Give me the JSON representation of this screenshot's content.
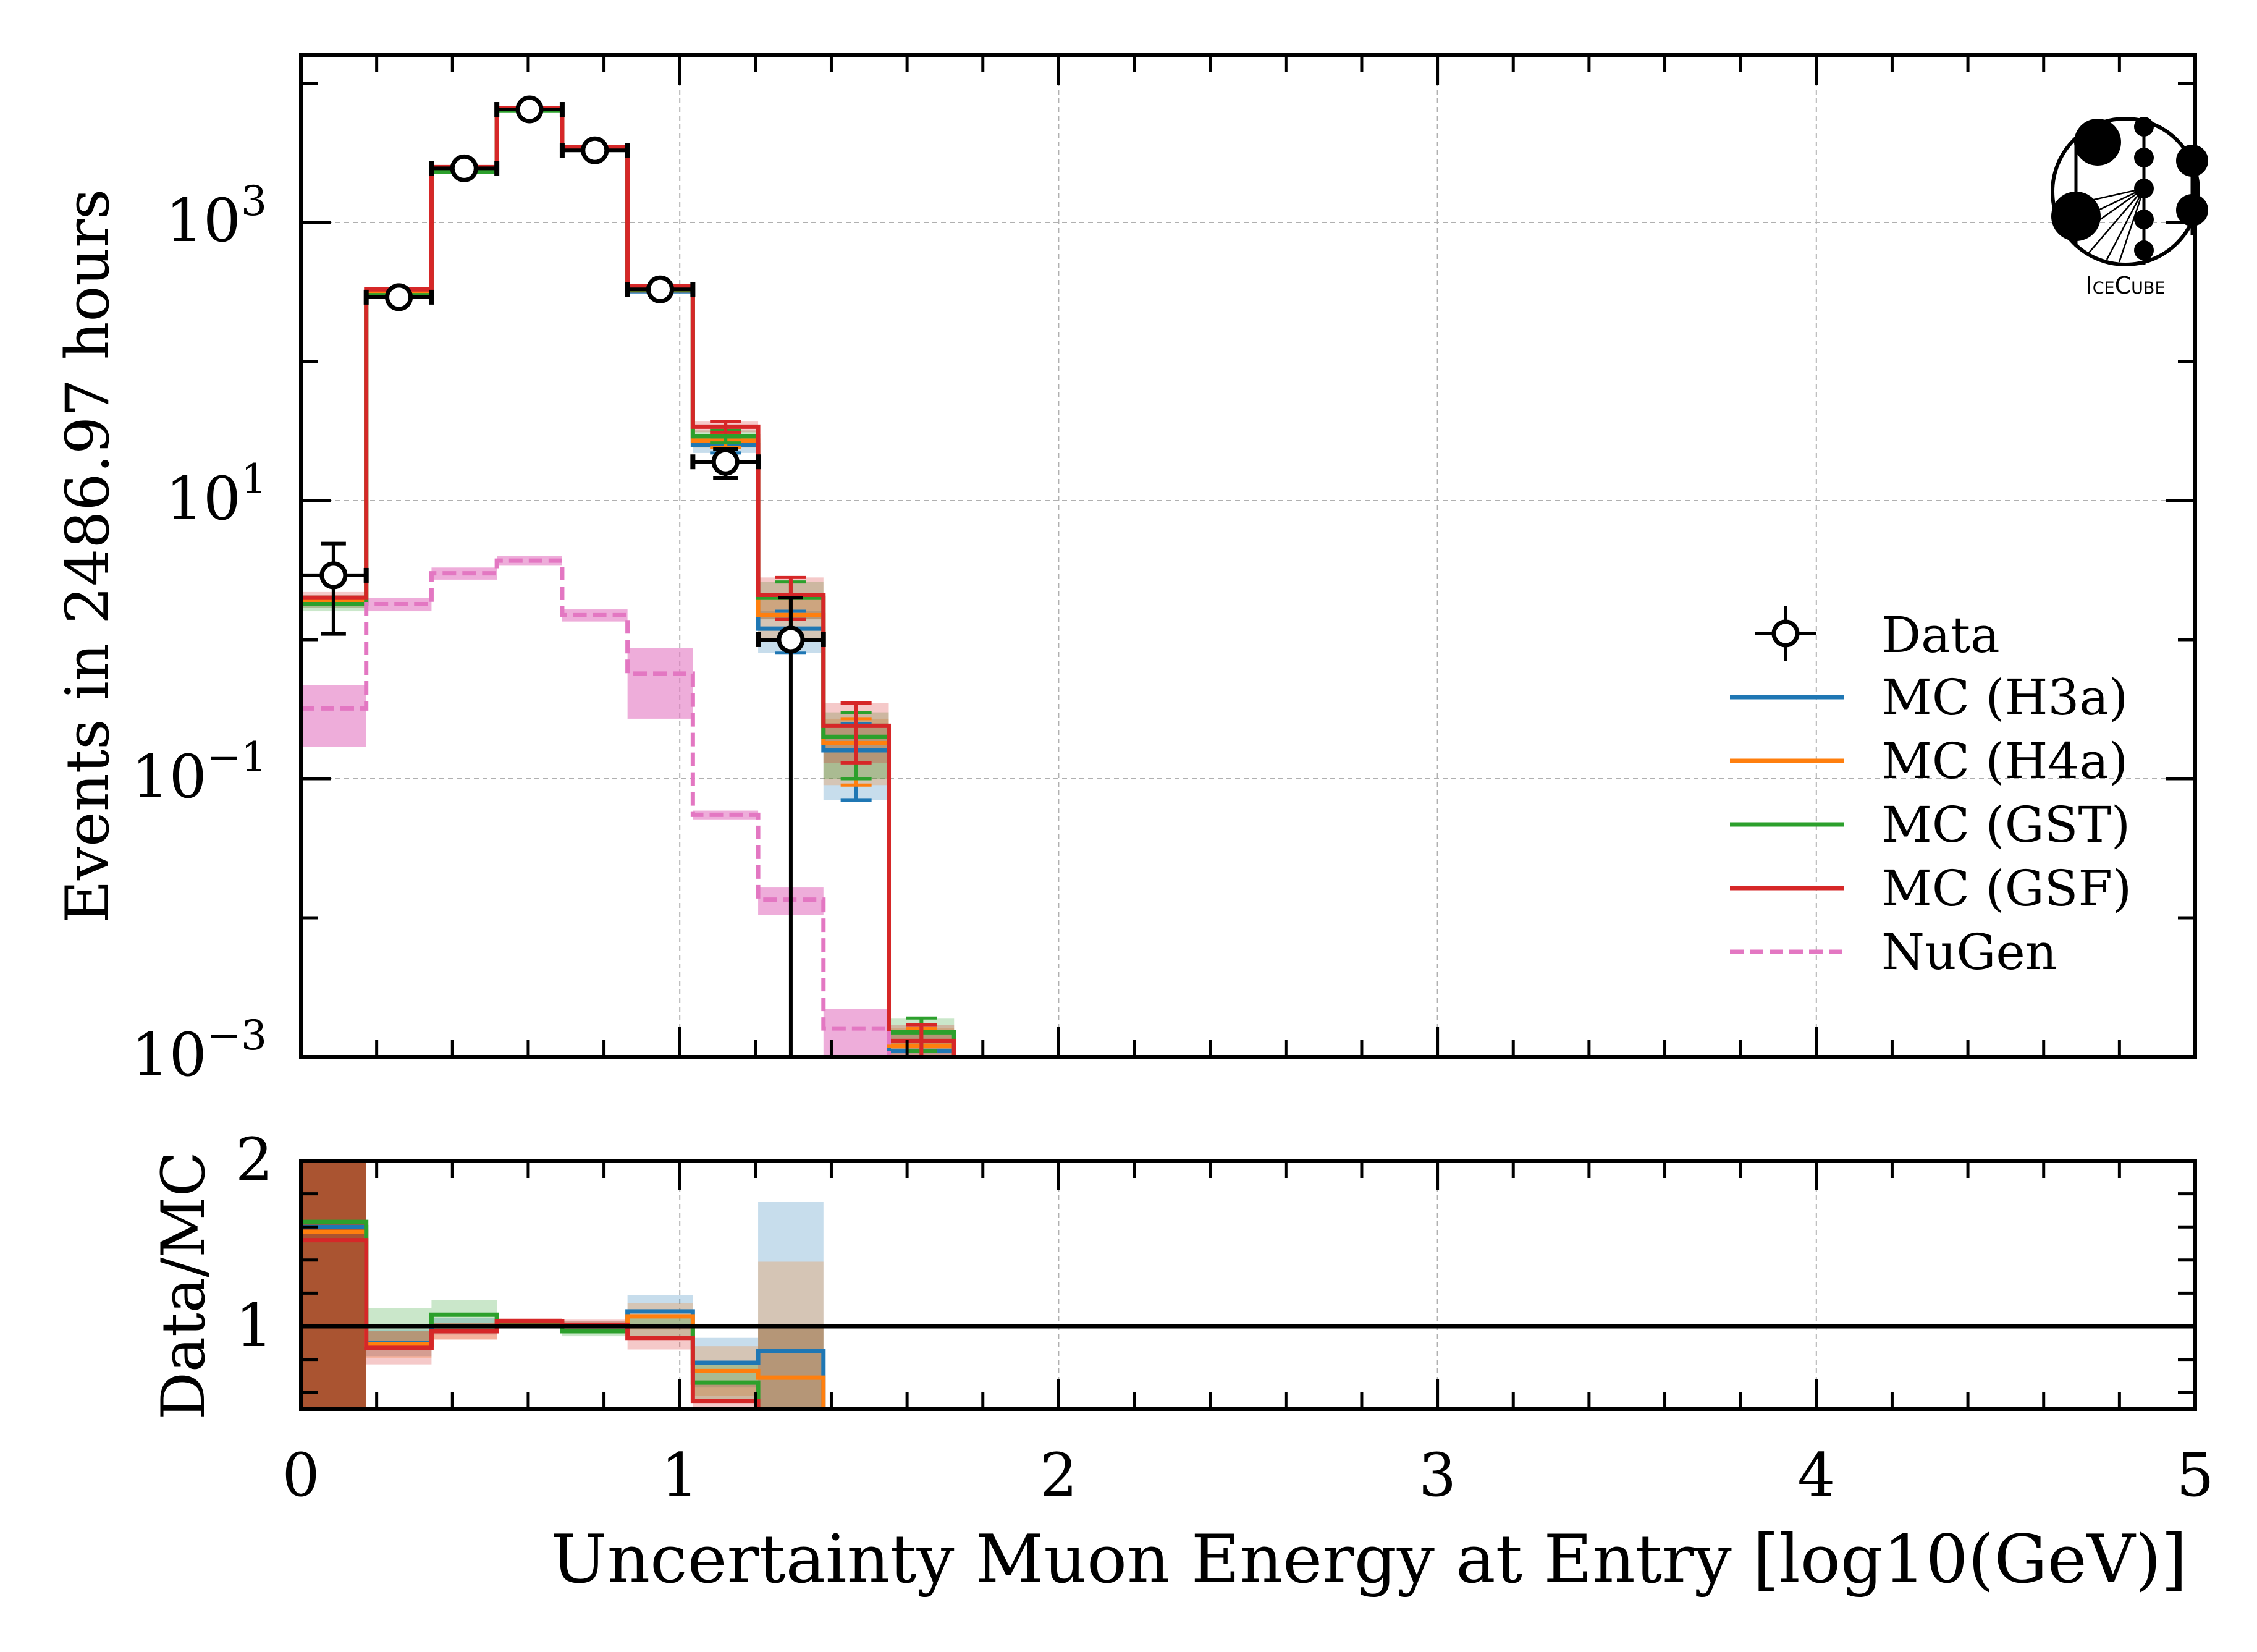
{
  "chart_data": [
    {
      "type": "step",
      "panel": "main",
      "ylabel": "Events in 2486.97 hours",
      "yscale": "log",
      "ylim": [
        0.001,
        16000
      ],
      "xlim": [
        0,
        5
      ],
      "grid": true,
      "yticks": [
        {
          "base": "10",
          "exp": "3",
          "v": 1000
        },
        {
          "base": "10",
          "exp": "1",
          "v": 10
        },
        {
          "base": "10",
          "exp": "−1",
          "v": 0.1
        },
        {
          "base": "10",
          "exp": "−3",
          "v": 0.001
        }
      ],
      "bin_edges": [
        0,
        0.1724,
        0.3448,
        0.5172,
        0.6897,
        0.8621,
        1.0345,
        1.2069,
        1.3793,
        1.5517,
        1.7241
      ],
      "data": {
        "name": "Data",
        "values": [
          2.9,
          290,
          2450,
          6500,
          3300,
          330,
          19,
          1.0
        ],
        "err_low": [
          1.8,
          17,
          50,
          80,
          57,
          18,
          4.4,
          1.0
        ],
        "err_high": [
          2.0,
          17,
          50,
          80,
          57,
          18,
          4.4,
          1.0
        ]
      },
      "series": [
        {
          "name": "MC (H3a)",
          "color": "#1f77b4",
          "dash": false,
          "values": [
            1.9,
            310,
            2380,
            6400,
            3350,
            320,
            25,
            1.2,
            0.16,
            0.0011
          ],
          "err": [
            0.2,
            8,
            30,
            50,
            35,
            8,
            3,
            0.4,
            0.09,
            0.0004
          ]
        },
        {
          "name": "MC (H4a)",
          "color": "#ff7f0e",
          "dash": false,
          "values": [
            1.9,
            315,
            2400,
            6450,
            3400,
            325,
            27,
            1.5,
            0.18,
            0.0012
          ],
          "err": [
            0.2,
            8,
            30,
            50,
            35,
            8,
            3,
            0.5,
            0.09,
            0.0004
          ]
        },
        {
          "name": "MC (GST)",
          "color": "#2ca02c",
          "dash": false,
          "values": [
            1.8,
            300,
            2300,
            6350,
            3400,
            330,
            29,
            2.0,
            0.2,
            0.0015
          ],
          "err": [
            0.2,
            8,
            30,
            50,
            35,
            8,
            3,
            0.6,
            0.1,
            0.0004
          ]
        },
        {
          "name": "MC (GSF)",
          "color": "#d62728",
          "dash": false,
          "values": [
            2.0,
            330,
            2500,
            6600,
            3500,
            350,
            34,
            2.1,
            0.24,
            0.0013
          ],
          "err": [
            0.2,
            8,
            30,
            50,
            35,
            8,
            3,
            0.7,
            0.11,
            0.0004
          ]
        },
        {
          "name": "NuGen",
          "color": "#e377c2",
          "dash": true,
          "values": [
            0.32,
            1.8,
            3.0,
            3.7,
            1.5,
            0.57,
            0.055,
            0.0135,
            0.0016
          ],
          "err": [
            0.15,
            0.2,
            0.3,
            0.3,
            0.15,
            0.3,
            0.004,
            0.003,
            0.0006
          ]
        }
      ],
      "legend": {
        "placement": "center-right"
      }
    },
    {
      "type": "step",
      "panel": "ratio",
      "xlabel": "Uncertainty Muon Energy at Entry [log10(GeV)]",
      "ylabel": "Data/MC",
      "ylim": [
        0.5,
        2
      ],
      "xlim": [
        0,
        5
      ],
      "xticks": [
        "0",
        "1",
        "2",
        "3",
        "4",
        "5"
      ],
      "yticks": [
        "1",
        "2"
      ],
      "reference_line": 1,
      "bin_edges": [
        0,
        0.1724,
        0.3448,
        0.5172,
        0.6897,
        0.8621,
        1.0345,
        1.2069,
        1.3793
      ],
      "series": [
        {
          "name": "MC (H3a)",
          "color": "#1f77b4",
          "values": [
            1.6,
            0.9,
            1.0,
            1.02,
            1.0,
            1.09,
            0.78,
            0.85
          ],
          "err": [
            2.0,
            0.08,
            0.05,
            0.02,
            0.03,
            0.1,
            0.15,
            0.9
          ]
        },
        {
          "name": "MC (H4a)",
          "color": "#ff7f0e",
          "values": [
            1.57,
            0.89,
            0.97,
            1.02,
            1.0,
            1.06,
            0.73,
            0.69
          ],
          "err": [
            2.0,
            0.08,
            0.05,
            0.02,
            0.03,
            0.08,
            0.15,
            0.7
          ]
        },
        {
          "name": "MC (GST)",
          "color": "#2ca02c",
          "values": [
            1.63,
            1.0,
            1.07,
            1.02,
            0.97,
            1.0,
            0.66,
            0.4
          ],
          "err": [
            2.0,
            0.11,
            0.09,
            0.02,
            0.03,
            0.06,
            0.12,
            0.6
          ]
        },
        {
          "name": "MC (GSF)",
          "color": "#d62728",
          "values": [
            1.52,
            0.87,
            0.97,
            1.03,
            1.01,
            0.93,
            0.55,
            0.4
          ],
          "err": [
            2.0,
            0.1,
            0.05,
            0.02,
            0.03,
            0.07,
            0.12,
            0.6
          ]
        }
      ]
    }
  ],
  "logo": {
    "text": "IceCube"
  }
}
